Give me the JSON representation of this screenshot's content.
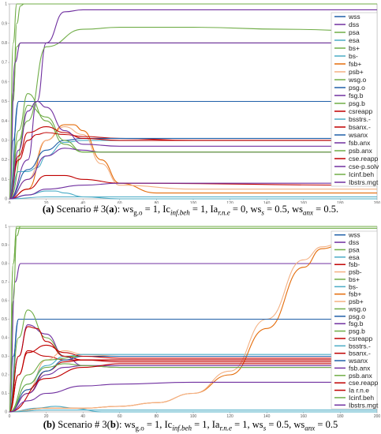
{
  "chart_data": [
    {
      "type": "line",
      "caption": {
        "label": "(a)",
        "text": "Scenario # 3(a): ws",
        "full": "(a) Scenario # 3(a): wsg.o = 1, Icinf.beh = 1, Iar.n.e = 0, wss = 0.5, wsanx = 0.5."
      },
      "xlim": [
        0,
        200
      ],
      "ylim": [
        0,
        1
      ],
      "xticks": [
        0,
        20,
        40,
        60,
        80,
        100,
        120,
        140,
        160,
        180,
        200
      ],
      "yticks": [
        0,
        0.1,
        0.2,
        0.3,
        0.4,
        0.5,
        0.6,
        0.7,
        0.8,
        0.9,
        1
      ],
      "legend_position": "right",
      "series": [
        {
          "name": "wss",
          "color": "#1f5fa8",
          "x": [
            0,
            2,
            5,
            10,
            200
          ],
          "y": [
            0,
            0.3,
            0.5,
            0.5,
            0.5
          ]
        },
        {
          "name": "dss",
          "color": "#7030a0",
          "x": [
            0,
            10,
            15,
            20,
            30,
            40,
            60,
            100,
            200
          ],
          "y": [
            0,
            0.2,
            0.5,
            0.8,
            0.96,
            0.97,
            0.97,
            0.97,
            0.97
          ]
        },
        {
          "name": "psa",
          "color": "#70ad47",
          "x": [
            0,
            2,
            4,
            6,
            8,
            200
          ],
          "y": [
            0,
            0.5,
            0.9,
            0.99,
            1,
            1
          ]
        },
        {
          "name": "esa",
          "color": "#4bacc6",
          "x": [
            0,
            10,
            20,
            25,
            30,
            40,
            60,
            200
          ],
          "y": [
            0,
            0.02,
            0.04,
            0.04,
            0.03,
            0.01,
            0,
            0
          ]
        },
        {
          "name": "bs+",
          "color": "#70ad47",
          "x": [
            0,
            2,
            4,
            6,
            200
          ],
          "y": [
            0,
            0.55,
            0.78,
            0.8,
            0.8
          ]
        },
        {
          "name": "bs-",
          "color": "#4bacc6",
          "x": [
            0,
            5,
            10,
            15,
            20,
            30,
            40,
            200
          ],
          "y": [
            0,
            0.14,
            0.14,
            0.16,
            0.22,
            0.29,
            0.3,
            0.3
          ]
        },
        {
          "name": "fsb+",
          "color": "#e46c0a",
          "x": [
            0,
            10,
            20,
            30,
            35,
            40,
            50,
            60,
            80,
            200
          ],
          "y": [
            0,
            0.05,
            0.3,
            0.38,
            0.38,
            0.35,
            0.2,
            0.08,
            0.03,
            0.03
          ]
        },
        {
          "name": "psb+",
          "color": "#f4b183",
          "x": [
            0,
            10,
            20,
            30,
            40,
            50,
            60,
            100,
            200
          ],
          "y": [
            0,
            0.1,
            0.3,
            0.37,
            0.33,
            0.18,
            0.07,
            0.05,
            0.05
          ]
        },
        {
          "name": "wsg.o",
          "color": "#70ad47",
          "x": [
            0,
            10,
            20,
            40,
            60,
            100,
            150,
            200
          ],
          "y": [
            0,
            0.4,
            0.78,
            0.87,
            0.88,
            0.88,
            0.87,
            0.86
          ]
        },
        {
          "name": "psg.o",
          "color": "#1f5fa8",
          "x": [
            0,
            5,
            10,
            200
          ],
          "y": [
            0,
            0.5,
            0.5,
            0.5
          ]
        },
        {
          "name": "fsg.b",
          "color": "#7030a0",
          "x": [
            0,
            3,
            6,
            200
          ],
          "y": [
            0,
            0.7,
            0.8,
            0.8
          ]
        },
        {
          "name": "psg.b",
          "color": "#70ad47",
          "x": [
            0,
            5,
            10,
            20,
            30,
            40,
            200
          ],
          "y": [
            0,
            0.35,
            0.54,
            0.4,
            0.28,
            0.24,
            0.24
          ]
        },
        {
          "name": "csreapp",
          "color": "#c00000",
          "x": [
            0,
            5,
            10,
            15,
            20,
            30,
            40,
            60,
            100,
            200
          ],
          "y": [
            0,
            0.2,
            0.3,
            0.33,
            0.34,
            0.33,
            0.32,
            0.31,
            0.3,
            0.3
          ]
        },
        {
          "name": "bsstrs.-",
          "color": "#4bacc6",
          "x": [
            0,
            20,
            40,
            60,
            200
          ],
          "y": [
            0,
            0.01,
            0.01,
            0.01,
            0.01
          ]
        },
        {
          "name": "bsanx.-",
          "color": "#c00000",
          "x": [
            0,
            10,
            20,
            30,
            40,
            60,
            200
          ],
          "y": [
            0,
            0.05,
            0.12,
            0.12,
            0.1,
            0.08,
            0.07
          ]
        },
        {
          "name": "wsanx",
          "color": "#1f5fa8",
          "x": [
            0,
            10,
            20,
            30,
            40,
            200
          ],
          "y": [
            0,
            0.15,
            0.25,
            0.3,
            0.31,
            0.31
          ]
        },
        {
          "name": "fsb.anx",
          "color": "#7030a0",
          "x": [
            0,
            10,
            20,
            30,
            40,
            50,
            60,
            200
          ],
          "y": [
            0,
            0.1,
            0.22,
            0.26,
            0.25,
            0.24,
            0.24,
            0.24
          ]
        },
        {
          "name": "psb.anx",
          "color": "#70ad47",
          "x": [
            0,
            5,
            10,
            20,
            30,
            40,
            200
          ],
          "y": [
            0,
            0.3,
            0.48,
            0.42,
            0.3,
            0.24,
            0.24
          ]
        },
        {
          "name": "cse.reapp",
          "color": "#c00000",
          "x": [
            0,
            5,
            10,
            20,
            30,
            40,
            60,
            200
          ],
          "y": [
            0,
            0.22,
            0.34,
            0.37,
            0.34,
            0.31,
            0.3,
            0.3
          ]
        },
        {
          "name": "cse-p.solv",
          "color": "#7030a0",
          "x": [
            0,
            5,
            10,
            15,
            20,
            30,
            40,
            60,
            200
          ],
          "y": [
            0,
            0.25,
            0.45,
            0.5,
            0.47,
            0.35,
            0.28,
            0.27,
            0.27
          ]
        },
        {
          "name": "Icinf.beh",
          "color": "#70ad47",
          "x": [
            0,
            2,
            4,
            200
          ],
          "y": [
            0,
            0.8,
            1,
            1
          ]
        },
        {
          "name": "Ibstrs.mgt",
          "color": "#7030a0",
          "x": [
            0,
            10,
            20,
            40,
            60,
            100,
            200
          ],
          "y": [
            0,
            0.02,
            0.05,
            0.07,
            0.08,
            0.08,
            0.08
          ]
        }
      ]
    },
    {
      "type": "line",
      "caption": {
        "label": "(b)",
        "text": "Scenario # 3(b): ws",
        "full": "(b) Scenario # 3(b): wsg.o = 1, Icinf.beh = 1, Iar.n.e = 1, wss = 0.5, wsanx = 0.5"
      },
      "xlim": [
        0,
        200
      ],
      "ylim": [
        0,
        1
      ],
      "xticks": [
        0,
        20,
        40,
        60,
        80,
        100,
        120,
        140,
        160,
        180,
        200
      ],
      "yticks": [
        0,
        0.1,
        0.2,
        0.3,
        0.4,
        0.5,
        0.6,
        0.7,
        0.8,
        0.9,
        1
      ],
      "legend_position": "right",
      "series": [
        {
          "name": "wss",
          "color": "#1f5fa8",
          "x": [
            0,
            2,
            5,
            10,
            200
          ],
          "y": [
            0,
            0.3,
            0.5,
            0.5,
            0.5
          ]
        },
        {
          "name": "dss",
          "color": "#7030a0",
          "x": [
            0,
            3,
            6,
            200
          ],
          "y": [
            0,
            0.7,
            0.8,
            0.8
          ]
        },
        {
          "name": "psa",
          "color": "#70ad47",
          "x": [
            0,
            2,
            4,
            6,
            200
          ],
          "y": [
            0,
            0.6,
            0.95,
            1,
            1
          ]
        },
        {
          "name": "esa",
          "color": "#4bacc6",
          "x": [
            0,
            15,
            25,
            35,
            50,
            200
          ],
          "y": [
            0,
            0.02,
            0.03,
            0.02,
            0,
            0
          ]
        },
        {
          "name": "fsb-",
          "color": "#c00000",
          "x": [
            0,
            5,
            10,
            20,
            30,
            40,
            60,
            200
          ],
          "y": [
            0,
            0.2,
            0.33,
            0.3,
            0.28,
            0.28,
            0.28,
            0.28
          ]
        },
        {
          "name": "psb-",
          "color": "#f4b183",
          "x": [
            0,
            10,
            20,
            30,
            40,
            60,
            200
          ],
          "y": [
            0,
            0.12,
            0.28,
            0.33,
            0.31,
            0.3,
            0.3
          ]
        },
        {
          "name": "bs+",
          "color": "#70ad47",
          "x": [
            0,
            2,
            4,
            200
          ],
          "y": [
            0,
            0.8,
            0.99,
            0.99
          ]
        },
        {
          "name": "bs-",
          "color": "#4bacc6",
          "x": [
            0,
            10,
            20,
            30,
            40,
            200
          ],
          "y": [
            0,
            0.15,
            0.25,
            0.3,
            0.31,
            0.31
          ]
        },
        {
          "name": "fsb+",
          "color": "#e46c0a",
          "x": [
            0,
            20,
            40,
            60,
            80,
            100,
            120,
            140,
            160,
            170,
            180
          ],
          "y": [
            0,
            0.02,
            0.02,
            0.03,
            0.05,
            0.1,
            0.2,
            0.45,
            0.78,
            0.88,
            0.9
          ]
        },
        {
          "name": "psb+",
          "color": "#f4b183",
          "x": [
            0,
            20,
            40,
            60,
            80,
            100,
            120,
            140,
            160,
            170,
            180
          ],
          "y": [
            0,
            0.02,
            0.02,
            0.03,
            0.05,
            0.1,
            0.22,
            0.5,
            0.82,
            0.89,
            0.91
          ]
        },
        {
          "name": "wsg.o",
          "color": "#70ad47",
          "x": [
            0,
            10,
            20,
            40,
            200
          ],
          "y": [
            0,
            0.2,
            0.28,
            0.3,
            0.3
          ]
        },
        {
          "name": "psg.o",
          "color": "#1f5fa8",
          "x": [
            0,
            5,
            10,
            200
          ],
          "y": [
            0,
            0.5,
            0.5,
            0.5
          ]
        },
        {
          "name": "fsg.b",
          "color": "#7030a0",
          "x": [
            0,
            5,
            10,
            20,
            30,
            40,
            60,
            200
          ],
          "y": [
            0,
            0.3,
            0.47,
            0.42,
            0.3,
            0.25,
            0.24,
            0.24
          ]
        },
        {
          "name": "psg.b",
          "color": "#70ad47",
          "x": [
            0,
            5,
            10,
            20,
            30,
            200
          ],
          "y": [
            0,
            0.4,
            0.55,
            0.4,
            0.3,
            0.3
          ]
        },
        {
          "name": "csreapp",
          "color": "#c00000",
          "x": [
            0,
            5,
            10,
            15,
            20,
            30,
            40,
            60,
            200
          ],
          "y": [
            0,
            0.3,
            0.46,
            0.45,
            0.38,
            0.3,
            0.28,
            0.27,
            0.27
          ]
        },
        {
          "name": "bsstrs.-",
          "color": "#4bacc6",
          "x": [
            0,
            20,
            40,
            200
          ],
          "y": [
            0,
            0.01,
            0.01,
            0.01
          ]
        },
        {
          "name": "bsanx.-",
          "color": "#c00000",
          "x": [
            0,
            10,
            20,
            30,
            40,
            60,
            200
          ],
          "y": [
            0,
            0.1,
            0.22,
            0.27,
            0.28,
            0.28,
            0.28
          ]
        },
        {
          "name": "wsanx",
          "color": "#1f5fa8",
          "x": [
            0,
            10,
            20,
            30,
            40,
            200
          ],
          "y": [
            0,
            0.12,
            0.22,
            0.28,
            0.3,
            0.3
          ]
        },
        {
          "name": "fsb.anx",
          "color": "#7030a0",
          "x": [
            0,
            10,
            20,
            30,
            40,
            60,
            200
          ],
          "y": [
            0,
            0.1,
            0.2,
            0.24,
            0.25,
            0.25,
            0.25
          ]
        },
        {
          "name": "psb.anx",
          "color": "#70ad47",
          "x": [
            0,
            10,
            20,
            30,
            40,
            60,
            200
          ],
          "y": [
            0,
            0.15,
            0.24,
            0.26,
            0.25,
            0.24,
            0.24
          ]
        },
        {
          "name": "cse.reapp",
          "color": "#c00000",
          "x": [
            0,
            5,
            10,
            20,
            30,
            40,
            60,
            200
          ],
          "y": [
            0,
            0.2,
            0.32,
            0.36,
            0.32,
            0.3,
            0.29,
            0.29
          ]
        },
        {
          "name": "Ia r.n.e",
          "color": "#c00000",
          "x": [
            0,
            20,
            40,
            60,
            200
          ],
          "y": [
            0,
            0.18,
            0.24,
            0.26,
            0.26
          ]
        },
        {
          "name": "Icinf.beh",
          "color": "#70ad47",
          "x": [
            0,
            2,
            4,
            200
          ],
          "y": [
            0,
            0.8,
            1,
            1
          ]
        },
        {
          "name": "Ibstrs.mgt",
          "color": "#7030a0",
          "x": [
            0,
            10,
            20,
            40,
            60,
            100,
            200
          ],
          "y": [
            0,
            0.06,
            0.1,
            0.14,
            0.15,
            0.16,
            0.16
          ]
        }
      ]
    }
  ]
}
